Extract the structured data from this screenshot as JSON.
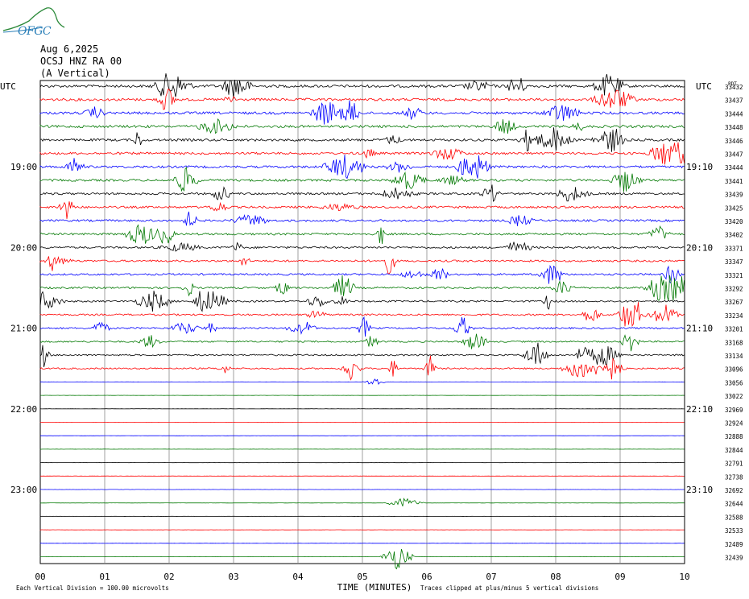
{
  "logo": {
    "text": "OFGC",
    "icon": "mountain-logo-icon",
    "color": "#2a7fb8"
  },
  "header": {
    "date": "Aug 6,2025",
    "station": "OCSJ HNZ RA 00",
    "component": "(A Vertical)"
  },
  "chart_data": {
    "type": "line",
    "title": "",
    "xlabel": "TIME (MINUTES)",
    "ylabel": "",
    "x_ticks": [
      "00",
      "01",
      "02",
      "03",
      "04",
      "05",
      "06",
      "07",
      "08",
      "09",
      "10"
    ],
    "xlim": [
      0,
      10
    ],
    "left_axis_header": "UTC",
    "right_axis_header": "UTC",
    "left_time_labels": [
      "19:00",
      "20:00",
      "21:00",
      "22:00",
      "23:00"
    ],
    "right_time_labels": [
      "19:10",
      "20:10",
      "21:10",
      "22:10",
      "23:10"
    ],
    "right_corner_label": "PDT",
    "trace_colors": [
      "#000000",
      "#ff0000",
      "#0000ff",
      "#007800"
    ],
    "trace_offsets": [
      "33432",
      "33437",
      "33444",
      "33448",
      "33446",
      "33447",
      "33444",
      "33441",
      "33439",
      "33425",
      "33420",
      "33402",
      "33371",
      "33347",
      "33321",
      "33292",
      "33267",
      "33234",
      "33201",
      "33168",
      "33134",
      "33096",
      "33056",
      "33022",
      "32969",
      "32924",
      "32888",
      "32844",
      "32791",
      "32738",
      "32692",
      "32644",
      "32588",
      "32533",
      "32489",
      "32439"
    ],
    "scale_note": "Each Vertical Division =  100.00 microvolts",
    "clip_note": "Traces clipped at plus/minus 5 vertical divisions"
  }
}
